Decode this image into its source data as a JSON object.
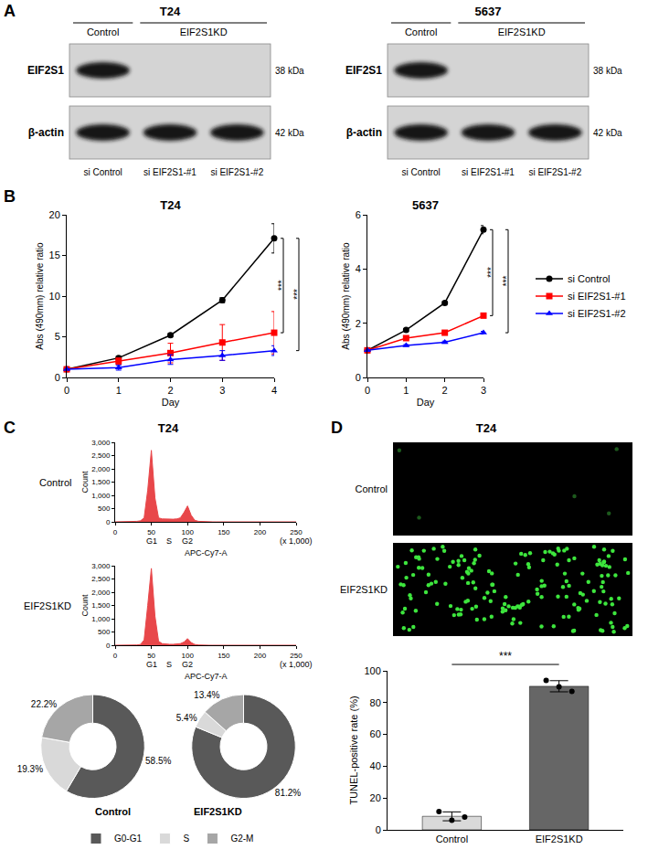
{
  "panel_labels": [
    "A",
    "B",
    "C",
    "D"
  ],
  "panel_titles": {
    "C": "T24",
    "D": "T24"
  },
  "blots": [
    {
      "title": "T24",
      "groups": [
        {
          "label": "Control",
          "lanes": [
            0
          ]
        },
        {
          "label": "EIF2S1KD",
          "lanes": [
            1,
            2
          ]
        }
      ],
      "lanes": [
        "si Control",
        "si EIF2S1-#1",
        "si EIF2S1-#2"
      ],
      "rows": [
        {
          "label": "EIF2S1",
          "size": "38 kDa",
          "bands": [
            true,
            false,
            false
          ]
        },
        {
          "label": "β-actin",
          "size": "42 kDa",
          "bands": [
            true,
            true,
            true
          ]
        }
      ]
    },
    {
      "title": "5637",
      "groups": [
        {
          "label": "Control",
          "lanes": [
            0
          ]
        },
        {
          "label": "EIF2S1KD",
          "lanes": [
            1,
            2
          ]
        }
      ],
      "lanes": [
        "si Control",
        "si EIF2S1-#1",
        "si EIF2S1-#2"
      ],
      "rows": [
        {
          "label": "EIF2S1",
          "size": "38 kDa",
          "bands": [
            true,
            false,
            false
          ]
        },
        {
          "label": "β-actin",
          "size": "42 kDa",
          "bands": [
            true,
            true,
            true
          ]
        }
      ]
    }
  ],
  "tunel_images": {
    "rows": [
      "Control",
      "EIF2S1KD"
    ]
  },
  "chart_data": [
    {
      "type": "line",
      "title": "T24",
      "xlabel": "Day",
      "ylabel": "Abs (490mm) relative ratio",
      "x": [
        0,
        1,
        2,
        3,
        4
      ],
      "xlim": [
        0,
        4
      ],
      "xticks": [
        0,
        1,
        2,
        3,
        4
      ],
      "ylim": [
        0,
        20
      ],
      "yticks": [
        0,
        5,
        10,
        15,
        20
      ],
      "series": [
        {
          "name": "si Control",
          "color": "#000000",
          "marker": "circle",
          "values": [
            1,
            2.4,
            5.2,
            9.5,
            17.1
          ],
          "error": [
            0,
            0.2,
            0.2,
            0.3,
            1.8
          ]
        },
        {
          "name": "si EIF2S1-#1",
          "color": "#ff0000",
          "marker": "square",
          "values": [
            1,
            2.0,
            3.0,
            4.3,
            5.5
          ],
          "error": [
            0,
            0.4,
            1.2,
            2.2,
            2.6
          ]
        },
        {
          "name": "si EIF2S1-#2",
          "color": "#0000ff",
          "marker": "triangle",
          "values": [
            1,
            1.2,
            2.2,
            2.7,
            3.3
          ],
          "error": [
            0,
            0.3,
            0.6,
            0.6,
            0.6
          ]
        }
      ],
      "annotations": [
        {
          "text": "***",
          "from": "si Control",
          "to": "si EIF2S1-#1"
        },
        {
          "text": "***",
          "from": "si Control",
          "to": "si EIF2S1-#2"
        }
      ]
    },
    {
      "type": "line",
      "title": "5637",
      "xlabel": "Day",
      "ylabel": "Abs (490mm) relative ratio",
      "x": [
        0,
        1,
        2,
        3
      ],
      "xlim": [
        0,
        3
      ],
      "xticks": [
        0,
        1,
        2,
        3
      ],
      "ylim": [
        0,
        6
      ],
      "yticks": [
        0,
        2,
        4,
        6
      ],
      "legend": "right",
      "series": [
        {
          "name": "si Control",
          "color": "#000000",
          "marker": "circle",
          "values": [
            1,
            1.75,
            2.75,
            5.45
          ],
          "error": [
            0,
            0.05,
            0.05,
            0.15
          ]
        },
        {
          "name": "si EIF2S1-#1",
          "color": "#ff0000",
          "marker": "square",
          "values": [
            1,
            1.45,
            1.65,
            2.28
          ],
          "error": [
            0,
            0.05,
            0.05,
            0.06
          ]
        },
        {
          "name": "si EIF2S1-#2",
          "color": "#0000ff",
          "marker": "triangle",
          "values": [
            1,
            1.18,
            1.3,
            1.65
          ],
          "error": [
            0,
            0.03,
            0.04,
            0.05
          ]
        }
      ],
      "annotations": [
        {
          "text": "***",
          "from": "si Control",
          "to": "si EIF2S1-#1"
        },
        {
          "text": "***",
          "from": "si Control",
          "to": "si EIF2S1-#2"
        }
      ]
    },
    {
      "type": "area",
      "title": "Control",
      "xlabel": "APC-Cy7-A",
      "ylabel": "Count",
      "color": "#e8474a",
      "x": [
        0,
        5,
        10,
        15,
        20,
        25,
        30,
        35,
        40,
        45,
        50,
        55,
        60,
        65,
        70,
        75,
        80,
        85,
        90,
        95,
        100,
        105,
        110,
        115,
        120,
        125,
        130,
        135,
        140,
        145,
        150,
        155,
        160,
        165,
        170,
        175,
        180,
        185,
        190,
        195,
        200,
        205,
        210,
        215,
        220,
        225,
        230,
        235,
        240,
        245,
        250
      ],
      "values": [
        0,
        0,
        0,
        0,
        0,
        0,
        20,
        40,
        150,
        1200,
        2700,
        900,
        150,
        110,
        100,
        100,
        100,
        110,
        150,
        350,
        600,
        250,
        60,
        20,
        10,
        0,
        0,
        0,
        0,
        0,
        0,
        0,
        0,
        0,
        0,
        0,
        0,
        0,
        0,
        0,
        0,
        0,
        0,
        0,
        0,
        0,
        0,
        0,
        0,
        0,
        0
      ],
      "xlim": [
        0,
        250
      ],
      "xticks": [
        0,
        50,
        100,
        150,
        200,
        250
      ],
      "ylim": [
        0,
        3000
      ],
      "yticks": [
        0,
        500,
        {
          "value": 1000,
          "label": "1,000"
        },
        {
          "value": 1500,
          "label": "1,500"
        },
        {
          "value": 2000,
          "label": "2,000"
        },
        {
          "value": 2500,
          "label": "2,500"
        },
        {
          "value": 3000,
          "label": "3,000"
        }
      ],
      "annotations": [
        {
          "text": "G1",
          "x": 50
        },
        {
          "text": "S",
          "x": 75
        },
        {
          "text": "G2",
          "x": 100
        },
        {
          "text": "(x 1,000)",
          "x": 250
        }
      ]
    },
    {
      "type": "area",
      "title": "EIF2S1KD",
      "xlabel": "APC-Cy7-A",
      "ylabel": "Count",
      "color": "#e8474a",
      "x": [
        0,
        5,
        10,
        15,
        20,
        25,
        30,
        35,
        40,
        45,
        50,
        55,
        60,
        65,
        70,
        75,
        80,
        85,
        90,
        95,
        100,
        105,
        110,
        115,
        120,
        125,
        130,
        135,
        140,
        145,
        150,
        155,
        160,
        165,
        170,
        175,
        180,
        185,
        190,
        195,
        200,
        205,
        210,
        215,
        220,
        225,
        230,
        235,
        240,
        245,
        250
      ],
      "values": [
        0,
        0,
        0,
        0,
        0,
        0,
        10,
        30,
        200,
        1500,
        2900,
        1100,
        150,
        60,
        40,
        35,
        35,
        40,
        60,
        120,
        250,
        100,
        30,
        10,
        0,
        0,
        0,
        0,
        0,
        0,
        0,
        0,
        0,
        0,
        0,
        0,
        0,
        0,
        0,
        0,
        0,
        0,
        0,
        0,
        0,
        0,
        0,
        0,
        0,
        0,
        0
      ],
      "xlim": [
        0,
        250
      ],
      "xticks": [
        0,
        50,
        100,
        150,
        200,
        250
      ],
      "ylim": [
        0,
        3000
      ],
      "yticks": [
        0,
        500,
        {
          "value": 1000,
          "label": "1,000"
        },
        {
          "value": 1500,
          "label": "1,500"
        },
        {
          "value": 2000,
          "label": "2,000"
        },
        {
          "value": 2500,
          "label": "2,500"
        },
        {
          "value": 3000,
          "label": "3,000"
        }
      ],
      "annotations": [
        {
          "text": "G1",
          "x": 50
        },
        {
          "text": "S",
          "x": 75
        },
        {
          "text": "G2",
          "x": 100
        },
        {
          "text": "(x 1,000)",
          "x": 250
        }
      ]
    },
    {
      "type": "pie",
      "categories": [
        "G0-G1",
        "S",
        "G2-M"
      ],
      "colors": [
        "#595959",
        "#d9d9d9",
        "#a6a6a6"
      ],
      "legend": "bottom",
      "series": [
        {
          "name": "Control",
          "values": [
            58.5,
            19.3,
            22.2
          ],
          "value_labels": [
            "58.5%",
            "19.3%",
            "22.2%"
          ]
        },
        {
          "name": "EIF2S1KD",
          "values": [
            81.2,
            5.4,
            13.4
          ],
          "value_labels": [
            "81.2%",
            "5.4%",
            "13.4%"
          ]
        }
      ]
    },
    {
      "type": "bar",
      "ylabel": "TUNEL-positive rate (%)",
      "categories": [
        "Control",
        "EIF2S1KD"
      ],
      "values": [
        8.5,
        90.3
      ],
      "error": [
        2.8,
        3.5
      ],
      "points": [
        [
          11.5,
          6.0,
          8.0
        ],
        [
          94.0,
          90.0,
          87.0
        ]
      ],
      "colors": [
        "#d9d9d9",
        "#666666"
      ],
      "ylim": [
        0,
        100
      ],
      "yticks": [
        0,
        20,
        40,
        60,
        80,
        100
      ],
      "annotations": [
        {
          "text": "***",
          "from": "Control",
          "to": "EIF2S1KD"
        }
      ]
    }
  ]
}
